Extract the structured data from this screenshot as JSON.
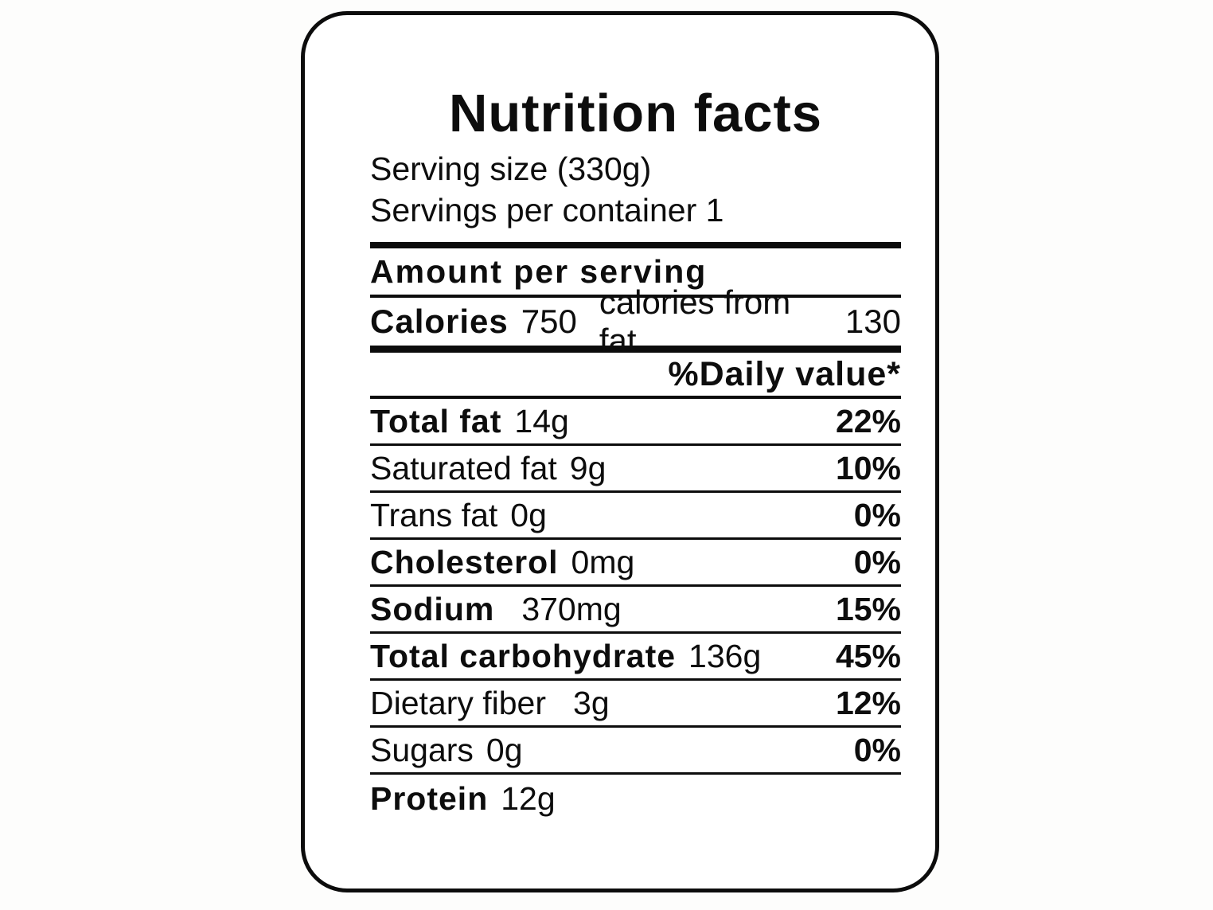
{
  "colors": {
    "text": "#0d0d0d",
    "background": "#ffffff",
    "border": "#0c0c0c"
  },
  "label": {
    "title": "Nutrition facts",
    "serving_size": "Serving size (330g)",
    "servings_per_container": "Servings per container 1",
    "amount_per_serving": "Amount per serving",
    "calories": {
      "label": "Calories",
      "value": "750",
      "from_fat_label": "calories from fat",
      "from_fat_value": "130"
    },
    "daily_value_header": "%Daily value*",
    "rows": [
      {
        "name": "Total fat",
        "amount": "14g",
        "dv": "22%",
        "bold": true
      },
      {
        "name": "Saturated fat",
        "amount": "9g",
        "dv": "10%",
        "bold": false
      },
      {
        "name": "Trans fat",
        "amount": "0g",
        "dv": "0%",
        "bold": false
      },
      {
        "name": "Cholesterol",
        "amount": "0mg",
        "dv": "0%",
        "bold": true
      },
      {
        "name": "Sodium",
        "amount": "370mg",
        "dv": "15%",
        "bold": true
      },
      {
        "name": "Total carbohydrate",
        "amount": "136g",
        "dv": "45%",
        "bold": true
      },
      {
        "name": "Dietary fiber",
        "amount": "3g",
        "dv": "12%",
        "bold": false
      },
      {
        "name": "Sugars",
        "amount": "0g",
        "dv": "0%",
        "bold": false
      },
      {
        "name": "Protein",
        "amount": "12g",
        "dv": "",
        "bold": true
      }
    ]
  }
}
